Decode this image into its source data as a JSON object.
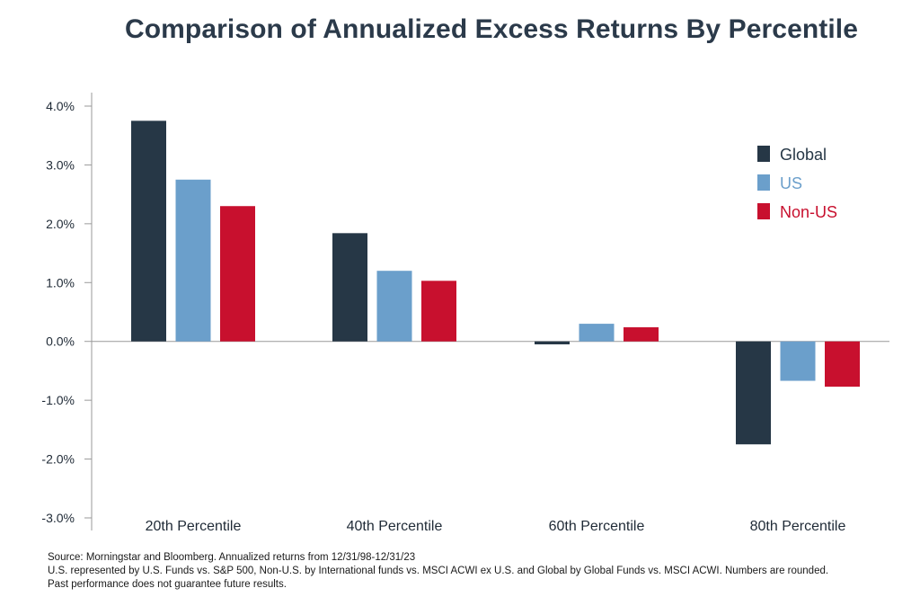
{
  "chart_data": {
    "type": "bar",
    "title": "Comparison of Annualized Excess Returns By Percentile",
    "categories": [
      "20th Percentile",
      "40th Percentile",
      "60th Percentile",
      "80th Percentile"
    ],
    "series": [
      {
        "name": "Global",
        "color": "#263746",
        "values": [
          3.75,
          1.84,
          -0.05,
          -1.75
        ]
      },
      {
        "name": "US",
        "color": "#6b9fcb",
        "values": [
          2.75,
          1.2,
          0.3,
          -0.67
        ]
      },
      {
        "name": "Non-US",
        "color": "#c8102e",
        "values": [
          2.3,
          1.03,
          0.24,
          -0.77
        ]
      }
    ],
    "ylim": [
      -3.0,
      4.0
    ],
    "yticks": [
      4.0,
      3.0,
      2.0,
      1.0,
      0.0,
      -1.0,
      -2.0,
      -3.0
    ],
    "ytick_labels": [
      "4.0%",
      "3.0%",
      "2.0%",
      "1.0%",
      "0.0%",
      "-1.0%",
      "-2.0%",
      "-3.0%"
    ],
    "xlabel": "",
    "ylabel": "",
    "legend_position": "top-right"
  },
  "footnotes": {
    "line1": "Source: Morningstar and Bloomberg. Annualized returns from 12/31/98-12/31/23",
    "line2": "U.S. represented by U.S. Funds vs. S&P 500, Non-U.S. by International funds vs. MSCI ACWI ex U.S. and Global by Global Funds vs. MSCI ACWI. Numbers are rounded.",
    "line3": "Past performance does not guarantee future results."
  }
}
